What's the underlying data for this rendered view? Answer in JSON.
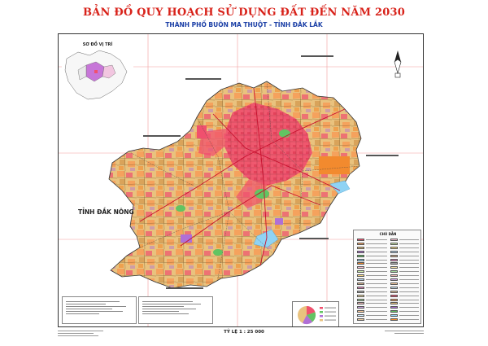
{
  "header": {
    "title": "BẢN ĐỒ QUY HOẠCH SỬ DỤNG ĐẤT ĐẾN NĂM 2030",
    "subtitle": "THÀNH PHỐ BUÔN MA THUỘT - TỈNH ĐẮK LẮK"
  },
  "inset": {
    "title": "SƠ ĐỒ VỊ TRÍ"
  },
  "map": {
    "province_label": "TỈNH ĐẮK NÔNG",
    "colors": {
      "urban": "#f0506e",
      "residential": "#f5a25d",
      "agriculture": "#e9c27e",
      "industrial": "#b06fd6",
      "forest": "#62c462",
      "water": "#8fd3f4",
      "special": "#f28a2e",
      "boundary": "#333333"
    }
  },
  "legend": {
    "title": "CHÚ DẪN"
  },
  "scale": {
    "label": "TỶ LỆ 1 : 25 000"
  }
}
